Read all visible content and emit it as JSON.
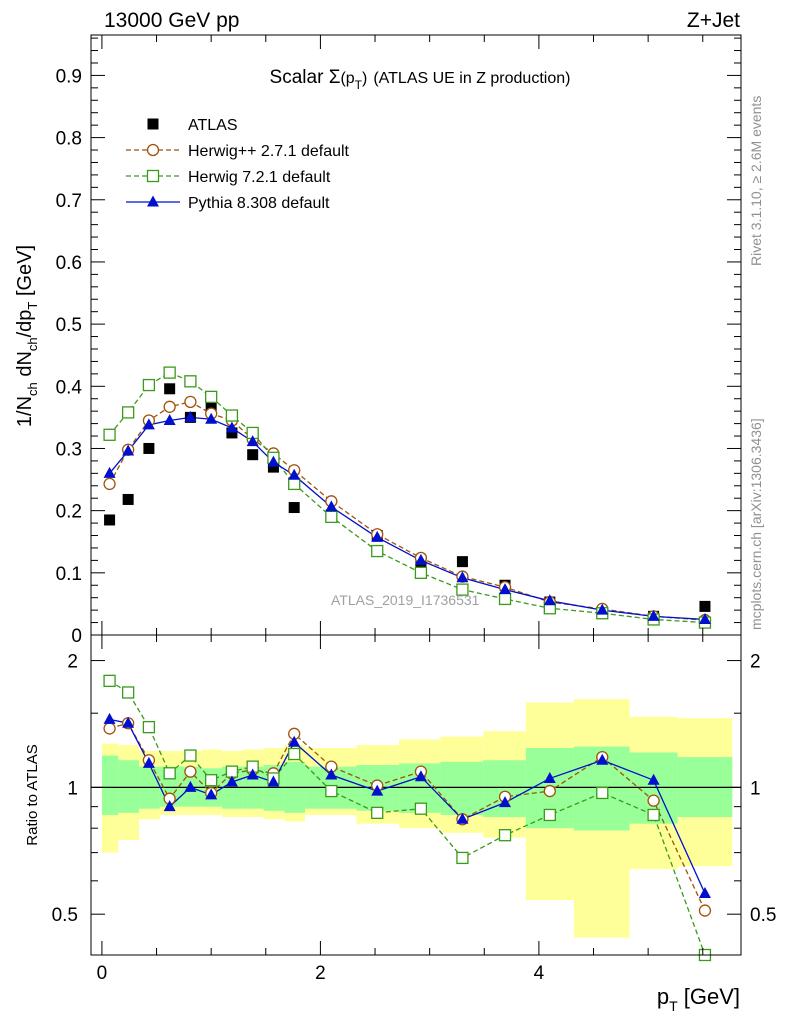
{
  "header": {
    "left": "13000 GeV pp",
    "right": "Z+Jet"
  },
  "side_labels": {
    "rivet": "Rivet 3.1.10, ≥ 2.6M events",
    "mcplots": "mcplots.cern.ch [arXiv:1306.3436]"
  },
  "watermark": "ATLAS_2019_I1736531",
  "chart_data": [
    {
      "type": "scatter",
      "title": "Scalar Σ(p_T) (ATLAS UE in Z production)",
      "title_parts": {
        "lead": "Scalar ",
        "sigma": "Σ",
        "arg_open": "(p",
        "sub": "T",
        "arg_close": ")",
        "tail": "(ATLAS UE in Z production)"
      },
      "ylabel": "1/N_ch dN_ch/dp_T [GeV]",
      "ylabel_parts": {
        "a": "1/N",
        "a_sub": "ch",
        "b": " dN",
        "b_sub": "ch",
        "c": "/dp",
        "c_sub": "T",
        "d": " [GeV]"
      },
      "xlim": [
        -0.1,
        5.85
      ],
      "ylim": [
        0,
        0.965
      ],
      "yticks": [
        0,
        0.1,
        0.2,
        0.3,
        0.4,
        0.5,
        0.6,
        0.7,
        0.8,
        0.9
      ],
      "ytick_labels": [
        "0",
        "0.1",
        "0.2",
        "0.3",
        "0.4",
        "0.5",
        "0.6",
        "0.7",
        "0.8",
        "0.9"
      ],
      "x": [
        0.07,
        0.24,
        0.43,
        0.62,
        0.81,
        1.0,
        1.19,
        1.38,
        1.57,
        1.76,
        2.1,
        2.52,
        2.92,
        3.3,
        3.69,
        4.1,
        4.58,
        5.05,
        5.52
      ],
      "legend": {
        "position": "top-left"
      },
      "series": [
        {
          "name": "ATLAS",
          "key": "data",
          "color": "#000000",
          "marker": "filled-square",
          "values": [
            0.185,
            0.218,
            0.3,
            0.396,
            0.35,
            0.366,
            0.325,
            0.29,
            0.27,
            0.205,
            0.193,
            0.16,
            0.113,
            0.118,
            0.08,
            0.053,
            0.036,
            0.03,
            0.046
          ]
        },
        {
          "name": "Herwig++ 2.7.1 default",
          "key": "herwigpp",
          "color": "#a0520d",
          "marker": "open-circle",
          "dashed": true,
          "values": [
            0.243,
            0.298,
            0.345,
            0.367,
            0.375,
            0.356,
            0.345,
            0.315,
            0.292,
            0.265,
            0.215,
            0.162,
            0.124,
            0.094,
            0.077,
            0.053,
            0.042,
            0.03,
            0.024
          ]
        },
        {
          "name": "Herwig 7.2.1 default",
          "key": "herwig7",
          "color": "#3a9a1a",
          "marker": "open-square",
          "dashed": true,
          "values": [
            0.322,
            0.358,
            0.402,
            0.422,
            0.408,
            0.383,
            0.353,
            0.325,
            0.285,
            0.243,
            0.19,
            0.135,
            0.1,
            0.073,
            0.058,
            0.043,
            0.035,
            0.025,
            0.02
          ]
        },
        {
          "name": "Pythia 8.308 default",
          "key": "pythia",
          "color": "#0010cc",
          "marker": "filled-triangle",
          "dashed": false,
          "values": [
            0.26,
            0.296,
            0.338,
            0.345,
            0.35,
            0.347,
            0.333,
            0.311,
            0.278,
            0.257,
            0.206,
            0.157,
            0.12,
            0.092,
            0.073,
            0.055,
            0.04,
            0.03,
            0.025
          ]
        }
      ]
    },
    {
      "type": "line",
      "ylabel": "Ratio to ATLAS",
      "xlabel": "p_T [GeV]",
      "xlabel_parts": {
        "a": "p",
        "a_sub": "T",
        "b": " [GeV]"
      },
      "xlim": [
        -0.1,
        5.85
      ],
      "ylim": [
        0.4,
        2.3
      ],
      "xticks": [
        0,
        2,
        4
      ],
      "xtick_labels": [
        "0",
        "2",
        "4"
      ],
      "yticks": [
        0.5,
        1,
        2
      ],
      "ytick_labels": [
        "0.5",
        "1",
        "2"
      ],
      "log_y": true,
      "reference_line": 1,
      "bins": [
        [
          0.0,
          0.15
        ],
        [
          0.15,
          0.34
        ],
        [
          0.34,
          0.53
        ],
        [
          0.53,
          0.72
        ],
        [
          0.72,
          0.91
        ],
        [
          0.91,
          1.1
        ],
        [
          1.1,
          1.29
        ],
        [
          1.29,
          1.48
        ],
        [
          1.48,
          1.67
        ],
        [
          1.67,
          1.86
        ],
        [
          1.86,
          2.33
        ],
        [
          2.33,
          2.72
        ],
        [
          2.72,
          3.1
        ],
        [
          3.1,
          3.49
        ],
        [
          3.49,
          3.88
        ],
        [
          3.88,
          4.32
        ],
        [
          4.32,
          4.83
        ],
        [
          4.83,
          5.27
        ],
        [
          5.27,
          5.77
        ]
      ],
      "band_green": [
        [
          0.86,
          1.19
        ],
        [
          0.87,
          1.16
        ],
        [
          0.89,
          1.12
        ],
        [
          0.9,
          1.12
        ],
        [
          0.9,
          1.12
        ],
        [
          0.9,
          1.11
        ],
        [
          0.89,
          1.12
        ],
        [
          0.89,
          1.12
        ],
        [
          0.88,
          1.13
        ],
        [
          0.87,
          1.15
        ],
        [
          0.89,
          1.12
        ],
        [
          0.88,
          1.13
        ],
        [
          0.87,
          1.14
        ],
        [
          0.86,
          1.15
        ],
        [
          0.85,
          1.16
        ],
        [
          0.8,
          1.24
        ],
        [
          0.79,
          1.25
        ],
        [
          0.82,
          1.21
        ],
        [
          0.85,
          1.18
        ]
      ],
      "band_yellow": [
        [
          0.7,
          1.27
        ],
        [
          0.75,
          1.26
        ],
        [
          0.84,
          1.22
        ],
        [
          0.86,
          1.22
        ],
        [
          0.86,
          1.22
        ],
        [
          0.86,
          1.23
        ],
        [
          0.85,
          1.22
        ],
        [
          0.85,
          1.23
        ],
        [
          0.84,
          1.24
        ],
        [
          0.83,
          1.26
        ],
        [
          0.86,
          1.24
        ],
        [
          0.82,
          1.26
        ],
        [
          0.8,
          1.3
        ],
        [
          0.78,
          1.32
        ],
        [
          0.76,
          1.36
        ],
        [
          0.54,
          1.59
        ],
        [
          0.44,
          1.62
        ],
        [
          0.64,
          1.47
        ],
        [
          0.65,
          1.46
        ]
      ],
      "series": [
        {
          "name": "Herwig++ 2.7.1 default",
          "key": "herwigpp",
          "values": [
            1.38,
            1.42,
            1.16,
            0.94,
            1.09,
            0.97,
            1.08,
            1.1,
            1.08,
            1.34,
            1.12,
            1.01,
            1.09,
            0.84,
            0.95,
            0.98,
            1.18,
            0.93,
            0.51
          ]
        },
        {
          "name": "Herwig 7.2.1 default",
          "key": "herwig7",
          "values": [
            1.79,
            1.68,
            1.39,
            1.08,
            1.19,
            1.04,
            1.09,
            1.12,
            1.05,
            1.2,
            0.98,
            0.87,
            0.89,
            0.68,
            0.77,
            0.86,
            0.97,
            0.86,
            0.4
          ]
        },
        {
          "name": "Pythia 8.308 default",
          "key": "pythia",
          "values": [
            1.45,
            1.42,
            1.14,
            0.9,
            1.0,
            0.96,
            1.03,
            1.07,
            1.03,
            1.28,
            1.07,
            0.98,
            1.06,
            0.84,
            0.92,
            1.05,
            1.16,
            1.04,
            0.56
          ]
        }
      ]
    }
  ]
}
